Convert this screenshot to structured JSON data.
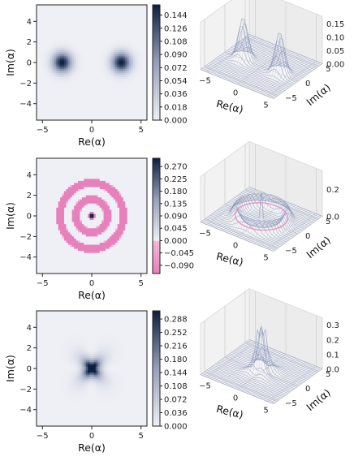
{
  "chart_data": [
    {
      "type": "heatmap",
      "title": "",
      "xlabel": "Re(α)",
      "ylabel": "Im(α)",
      "xlim": [
        -5.6,
        5.6
      ],
      "ylim": [
        -5.6,
        5.6
      ],
      "xticks": [
        "−5",
        "0",
        "5"
      ],
      "yticks": [
        "4",
        "2",
        "0",
        "−2",
        "−4"
      ],
      "colorbar": {
        "ticks": [
          "0.000",
          "0.018",
          "0.036",
          "0.054",
          "0.072",
          "0.090",
          "0.108",
          "0.126",
          "0.144"
        ],
        "min": 0.0,
        "max": 0.158,
        "colormap": "white-to-navy"
      },
      "state": "two-peak",
      "peaks": [
        {
          "x": -3,
          "y": 0,
          "height": 0.158
        },
        {
          "x": 3,
          "y": 0,
          "height": 0.158
        }
      ]
    },
    {
      "type": "surface3d",
      "title": "",
      "xlabel": "Re(α)",
      "ylabel": "Im(α)",
      "xticks": [
        "−5",
        "0",
        "5"
      ],
      "yticks": [
        "5",
        "0",
        "−5"
      ],
      "zticks": [
        "0.15",
        "0.10",
        "0.05",
        "0.00"
      ]
    },
    {
      "type": "heatmap",
      "title": "",
      "xlabel": "Re(α)",
      "ylabel": "Im(α)",
      "xlim": [
        -5.6,
        5.6
      ],
      "ylim": [
        -5.6,
        5.6
      ],
      "xticks": [
        "−5",
        "0",
        "5"
      ],
      "yticks": [
        "4",
        "2",
        "0",
        "−2",
        "−4"
      ],
      "colorbar": {
        "ticks": [
          "0.270",
          "0.225",
          "0.180",
          "0.135",
          "0.090",
          "0.045",
          "0.000",
          "−0.045",
          "−0.090"
        ],
        "min": -0.12,
        "max": 0.3,
        "colormap": "pink-white-navy"
      },
      "state": "rings",
      "ring_radii": [
        0.6,
        1.4,
        2.2,
        3.0,
        3.9
      ],
      "ring_values": [
        -0.09,
        -0.09,
        -0.09,
        -0.09,
        -0.09
      ]
    },
    {
      "type": "surface3d",
      "title": "",
      "xlabel": "Re(α)",
      "ylabel": "Im(α)",
      "xticks": [
        "−5",
        "0",
        "5"
      ],
      "yticks": [
        "5",
        "0",
        "−5"
      ],
      "zticks": [
        "0.2",
        "0.0"
      ]
    },
    {
      "type": "heatmap",
      "title": "",
      "xlabel": "Re(α)",
      "ylabel": "Im(α)",
      "xlim": [
        -5.6,
        5.6
      ],
      "ylim": [
        -5.6,
        5.6
      ],
      "xticks": [
        "−5",
        "0",
        "5"
      ],
      "yticks": [
        "4",
        "2",
        "0",
        "−2",
        "−4"
      ],
      "colorbar": {
        "ticks": [
          "0.288",
          "0.252",
          "0.216",
          "0.180",
          "0.144",
          "0.108",
          "0.072",
          "0.036",
          "0.000"
        ],
        "min": 0.0,
        "max": 0.31,
        "colormap": "white-to-navy"
      },
      "state": "cross-peak",
      "peaks": [
        {
          "x": 0,
          "y": 0,
          "height": 0.31
        }
      ]
    },
    {
      "type": "surface3d",
      "title": "",
      "xlabel": "Re(α)",
      "ylabel": "Im(α)",
      "xticks": [
        "−5",
        "0",
        "5"
      ],
      "yticks": [
        "5",
        "0",
        "−5"
      ],
      "zticks": [
        "0.3",
        "0.2",
        "0.1",
        "0.0"
      ]
    }
  ]
}
